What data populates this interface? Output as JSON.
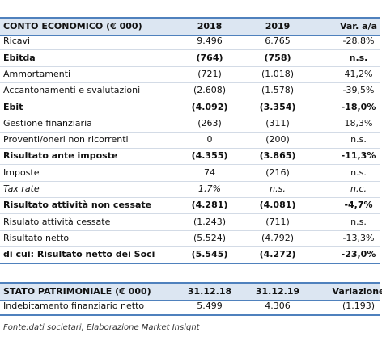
{
  "table": {
    "header": [
      "CONTO ECONOMICO (€ 000)",
      "2018",
      "2019",
      "Var. a/a"
    ],
    "rows": [
      [
        "Ricavi",
        "9.496",
        "6.765",
        "-28,8%"
      ],
      [
        "Ebitda",
        "(764)",
        "(758)",
        "n.s."
      ],
      [
        "Ammortamenti",
        "(721)",
        "(1.018)",
        "41,2%"
      ],
      [
        "Accantonamenti e svalutazioni",
        "(2.608)",
        "(1.578)",
        "-39,5%"
      ],
      [
        "Ebit",
        "(4.092)",
        "(3.354)",
        "-18,0%"
      ],
      [
        "Gestione finanziaria",
        "(263)",
        "(311)",
        "18,3%"
      ],
      [
        "Proventi/oneri non ricorrenti",
        "0",
        "(200)",
        "n.s."
      ],
      [
        "Risultato ante imposte",
        "(4.355)",
        "(3.865)",
        "-11,3%"
      ],
      [
        "Imposte",
        "74",
        "(216)",
        "n.s."
      ],
      [
        "Tax rate",
        "1,7%",
        "n.s.",
        "n.c."
      ],
      [
        "Risultato attività non cessate",
        "(4.281)",
        "(4.081)",
        "-4,7%"
      ],
      [
        "Risulato attività cessate",
        "(1.243)",
        "(711)",
        "n.s."
      ],
      [
        "Risultato netto",
        "(5.524)",
        "(4.792)",
        "-13,3%"
      ],
      [
        "di cui: Risultato netto dei Soci",
        "(5.545)",
        "(4.272)",
        "-23,0%"
      ]
    ]
  },
  "table2": {
    "header": [
      "STATO PATRIMONIALE (€ 000)",
      "31.12.18",
      "31.12.19",
      "Variazione"
    ],
    "rows": [
      [
        "Indebitamento finanziario netto",
        "5.499",
        "4.306",
        "(1.193)"
      ]
    ]
  },
  "footer": "Fonte:dati societari, Elaborazione Market Insight"
}
